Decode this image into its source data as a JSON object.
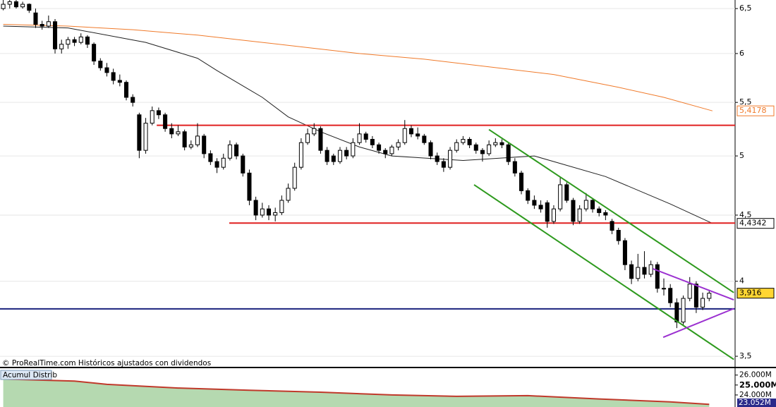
{
  "chart_data": {
    "type": "candlestick",
    "log_scale": true,
    "grid": true,
    "xlim": [
      -0.5,
      113
    ],
    "ylim": [
      3.435,
      6.6
    ],
    "yticks": [
      {
        "value": 3.5,
        "label": "3,5"
      },
      4,
      {
        "value": 4.5,
        "label": "4,5"
      },
      5,
      {
        "value": 5.5,
        "label": "5,5"
      },
      6,
      {
        "value": 6.5,
        "label": "6,5"
      }
    ],
    "up_color": "#ffffff",
    "down_color": "#000000",
    "open": [
      6.5,
      6.55,
      6.58,
      6.52,
      6.55,
      6.45,
      6.32,
      6.3,
      6.35,
      6.05,
      6.1,
      6.15,
      6.12,
      6.18,
      6.1,
      5.92,
      5.85,
      5.8,
      5.72,
      5.7,
      5.55,
      5.38,
      5.05,
      5.3,
      5.42,
      5.38,
      5.25,
      5.2,
      5.22,
      5.08,
      5.1,
      5.18,
      5.02,
      4.95,
      4.9,
      4.98,
      5.1,
      5.0,
      4.85,
      4.62,
      4.5,
      4.55,
      4.5,
      4.52,
      4.62,
      4.72,
      4.9,
      5.12,
      5.2,
      5.25,
      5.05,
      5.0,
      4.95,
      5.05,
      5.0,
      5.12,
      5.2,
      5.15,
      5.1,
      5.05,
      5.02,
      5.08,
      5.12,
      5.25,
      5.2,
      5.18,
      5.12,
      5.0,
      4.95,
      4.9,
      5.05,
      5.12,
      5.15,
      5.1,
      5.05,
      5.02,
      5.1,
      5.12,
      5.1,
      4.95,
      4.85,
      4.7,
      4.62,
      4.58,
      4.6,
      4.45,
      4.55,
      4.75,
      4.62,
      4.45,
      4.55,
      4.62,
      4.55,
      4.52,
      4.45,
      4.38,
      4.3,
      4.12,
      4.02,
      4.1,
      4.05,
      4.12,
      3.95,
      3.95,
      3.85,
      3.72,
      3.88,
      3.98,
      3.82,
      3.88
    ],
    "high": [
      6.6,
      6.6,
      6.6,
      6.58,
      6.56,
      6.5,
      6.36,
      6.42,
      6.38,
      6.15,
      6.18,
      6.18,
      6.22,
      6.2,
      6.12,
      5.95,
      5.9,
      5.84,
      5.78,
      5.72,
      5.58,
      5.4,
      5.35,
      5.46,
      5.45,
      5.4,
      5.3,
      5.28,
      5.24,
      5.14,
      5.3,
      5.2,
      5.05,
      4.98,
      5.02,
      5.14,
      5.12,
      5.02,
      4.88,
      4.65,
      4.6,
      4.58,
      4.56,
      4.66,
      4.76,
      4.94,
      5.16,
      5.25,
      5.3,
      5.27,
      5.08,
      5.02,
      5.08,
      5.08,
      5.16,
      5.3,
      5.22,
      5.18,
      5.12,
      5.07,
      5.1,
      5.15,
      5.33,
      5.28,
      5.26,
      5.2,
      5.14,
      5.03,
      4.98,
      5.08,
      5.15,
      5.18,
      5.17,
      5.12,
      5.07,
      5.14,
      5.16,
      5.15,
      5.12,
      4.98,
      4.87,
      4.72,
      4.66,
      4.62,
      4.62,
      4.58,
      4.82,
      4.77,
      4.64,
      4.58,
      4.68,
      4.64,
      4.57,
      4.54,
      4.47,
      4.4,
      4.32,
      4.15,
      4.2,
      4.22,
      4.15,
      4.14,
      4.02,
      3.98,
      3.88,
      3.9,
      4.03,
      4.0,
      3.92,
      3.94
    ],
    "low": [
      6.48,
      6.5,
      6.5,
      6.5,
      6.45,
      6.28,
      6.26,
      6.28,
      6.0,
      6.0,
      6.05,
      6.08,
      6.1,
      6.06,
      5.88,
      5.82,
      5.76,
      5.68,
      5.66,
      5.52,
      5.46,
      4.98,
      5.02,
      5.28,
      5.34,
      5.22,
      5.16,
      5.18,
      5.05,
      5.06,
      5.08,
      4.98,
      4.92,
      4.85,
      4.88,
      4.96,
      4.97,
      4.82,
      4.58,
      4.46,
      4.48,
      4.46,
      4.45,
      4.5,
      4.6,
      4.7,
      4.88,
      5.1,
      5.18,
      5.02,
      4.92,
      4.92,
      4.93,
      4.97,
      4.98,
      5.1,
      5.12,
      5.07,
      5.02,
      4.98,
      5.0,
      5.05,
      5.1,
      5.17,
      5.15,
      5.1,
      4.97,
      4.92,
      4.86,
      4.88,
      5.03,
      5.1,
      5.07,
      5.02,
      4.95,
      5.0,
      5.08,
      5.07,
      4.92,
      4.82,
      4.67,
      4.59,
      4.55,
      4.52,
      4.4,
      4.43,
      4.53,
      4.6,
      4.42,
      4.43,
      4.53,
      4.52,
      4.49,
      4.46,
      4.35,
      4.27,
      4.08,
      3.98,
      4.0,
      4.02,
      4.03,
      3.92,
      3.9,
      3.82,
      3.68,
      3.7,
      3.86,
      3.78,
      3.8,
      3.86
    ],
    "close": [
      6.55,
      6.58,
      6.52,
      6.55,
      6.48,
      6.32,
      6.3,
      6.35,
      6.05,
      6.1,
      6.15,
      6.12,
      6.18,
      6.1,
      5.92,
      5.85,
      5.8,
      5.72,
      5.7,
      5.55,
      5.5,
      5.05,
      5.3,
      5.42,
      5.38,
      5.25,
      5.2,
      5.22,
      5.08,
      5.1,
      5.18,
      5.02,
      4.95,
      4.9,
      4.98,
      5.1,
      5.0,
      4.85,
      4.62,
      4.5,
      4.55,
      4.5,
      4.52,
      4.62,
      4.72,
      4.9,
      5.12,
      5.2,
      5.25,
      5.05,
      4.95,
      4.95,
      5.05,
      5.0,
      5.12,
      5.2,
      5.15,
      5.1,
      5.05,
      5.02,
      5.08,
      5.12,
      5.25,
      5.2,
      5.18,
      5.12,
      5.0,
      4.95,
      4.9,
      5.05,
      5.12,
      5.15,
      5.1,
      5.05,
      5.02,
      5.1,
      5.12,
      5.1,
      4.95,
      4.85,
      4.7,
      4.62,
      4.58,
      4.55,
      4.45,
      4.55,
      4.75,
      4.62,
      4.45,
      4.55,
      4.62,
      4.55,
      4.52,
      4.5,
      4.38,
      4.3,
      4.12,
      4.02,
      4.1,
      4.05,
      4.12,
      3.95,
      3.95,
      3.85,
      3.72,
      3.88,
      3.98,
      3.82,
      3.88,
      3.916
    ],
    "moving_averages": [
      {
        "color": "#f07a2a",
        "x": [
          0,
          10,
          20,
          30,
          40,
          50,
          55,
          65,
          75,
          85,
          95,
          102,
          109.5
        ],
        "values": [
          6.32,
          6.3,
          6.26,
          6.2,
          6.12,
          6.04,
          6.0,
          5.94,
          5.86,
          5.78,
          5.65,
          5.55,
          5.4178
        ]
      },
      {
        "color": "#202020",
        "x": [
          0,
          10,
          22,
          30,
          33,
          40,
          44,
          49,
          55,
          60,
          71,
          82,
          93,
          103,
          109.5
        ],
        "values": [
          6.3,
          6.28,
          6.12,
          5.95,
          5.82,
          5.55,
          5.36,
          5.22,
          5.08,
          5.0,
          4.96,
          5.0,
          4.82,
          4.59,
          4.4342
        ]
      }
    ],
    "levels": [
      {
        "color": "#e02020",
        "from": 23.7,
        "value": 5.28
      },
      {
        "color": "#e02020",
        "from": 34.9,
        "value": 4.437
      },
      {
        "color": "#1a237e",
        "value": 3.808
      }
    ],
    "trendlines": [
      {
        "color": "#2e9a1e",
        "x": [
          75.0,
          112.8
        ],
        "values": [
          5.24,
          3.92
        ]
      },
      {
        "color": "#2e9a1e",
        "x": [
          72.7,
          112.8
        ],
        "values": [
          4.75,
          3.48
        ]
      },
      {
        "color": "#9b30d0",
        "x": [
          100.3,
          112.8
        ],
        "values": [
          4.09,
          3.87
        ]
      },
      {
        "color": "#9b30d0",
        "x": [
          101.9,
          112.8
        ],
        "values": [
          3.62,
          3.81
        ]
      }
    ],
    "price_labels": [
      {
        "value": 5.4178,
        "label": "5,4178",
        "color": "#f07a2a",
        "background": "#ffffff"
      },
      {
        "value": 4.4342,
        "label": "4,4342",
        "color": "#000000",
        "background": "#ffffff"
      },
      {
        "value": 3.916,
        "label": "3,916",
        "color": "#000000",
        "background": "#ffd633"
      }
    ],
    "footer": "© ProRealTime.com Históricos ajustados con dividendos",
    "indicator": {
      "title": "Acumul Distrib",
      "line_color": "#c0392b",
      "fill_color": "#b5d9b0",
      "x": [
        0,
        11,
        16,
        27,
        38,
        49,
        60,
        70,
        81,
        92,
        103,
        109
      ],
      "values": [
        25600000,
        25400000,
        25070000,
        24700000,
        24480000,
        24280000,
        24000000,
        23860000,
        23930000,
        23600000,
        23300000,
        23052000
      ],
      "ylim": [
        22790000,
        26620000
      ],
      "yticks": [
        {
          "value": 26000000,
          "label": "26.000M"
        },
        {
          "value": 25000000,
          "label": "25.000M"
        },
        {
          "value": 24000000,
          "label": "24.000M"
        }
      ],
      "current": {
        "value": 23052000,
        "label": "23.052M"
      }
    }
  }
}
